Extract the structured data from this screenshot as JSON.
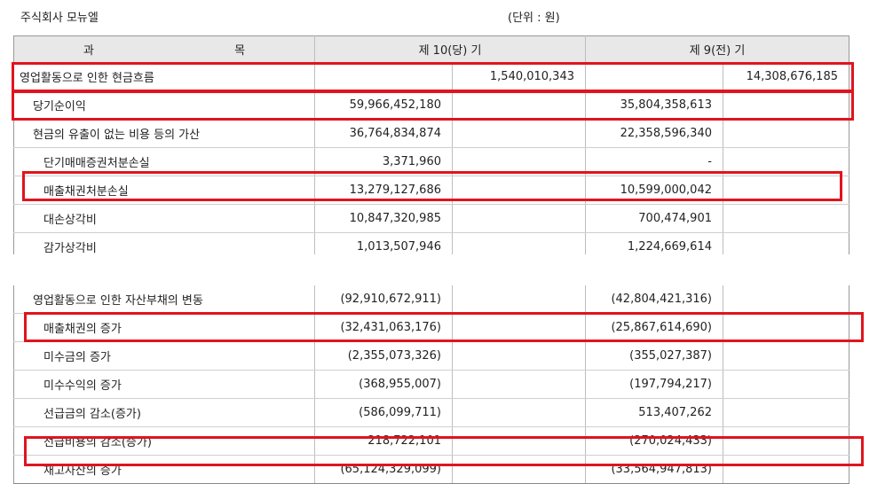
{
  "company": "주식회사 모뉴엘",
  "unit": "(단위 : 원)",
  "header": {
    "item_left": "과",
    "item_right": "목",
    "period10": "제 10(당) 기",
    "period9": "제 9(전) 기"
  },
  "top_rows": [
    {
      "label": "영업활동으로 인한 현금흐름",
      "c1": "",
      "c2": "1,540,010,343",
      "c3": "",
      "c4": "14,308,676,185"
    },
    {
      "label": "당기순이익",
      "c1": "59,966,452,180",
      "c2": "",
      "c3": "35,804,358,613",
      "c4": ""
    },
    {
      "label": "현금의 유출이 없는 비용 등의 가산",
      "c1": "36,764,834,874",
      "c2": "",
      "c3": "22,358,596,340",
      "c4": ""
    },
    {
      "label": "단기매매증권처분손실",
      "c1": "3,371,960",
      "c2": "",
      "c3": "-",
      "c4": ""
    },
    {
      "label": "매출채권처분손실",
      "c1": "13,279,127,686",
      "c2": "",
      "c3": "10,599,000,042",
      "c4": ""
    },
    {
      "label": "대손상각비",
      "c1": "10,847,320,985",
      "c2": "",
      "c3": "700,474,901",
      "c4": ""
    },
    {
      "label": "감가상각비",
      "c1": "1,013,507,946",
      "c2": "",
      "c3": "1,224,669,614",
      "c4": ""
    }
  ],
  "bottom_rows": [
    {
      "label": "영업활동으로 인한 자산부채의 변동",
      "c1": "(92,910,672,911)",
      "c2": "",
      "c3": "(42,804,421,316)",
      "c4": ""
    },
    {
      "label": "매출채권의 증가",
      "c1": "(32,431,063,176)",
      "c2": "",
      "c3": "(25,867,614,690)",
      "c4": ""
    },
    {
      "label": "미수금의 증가",
      "c1": "(2,355,073,326)",
      "c2": "",
      "c3": "(355,027,387)",
      "c4": ""
    },
    {
      "label": "미수수익의 증가",
      "c1": "(368,955,007)",
      "c2": "",
      "c3": "(197,794,217)",
      "c4": ""
    },
    {
      "label": "선급금의 감소(증가)",
      "c1": "(586,099,711)",
      "c2": "",
      "c3": "513,407,262",
      "c4": ""
    },
    {
      "label": "선급비용의 감소(증가)",
      "c1": "218,722,101",
      "c2": "",
      "c3": "(270,024,433)",
      "c4": ""
    },
    {
      "label": "재고자산의 증가",
      "c1": "(65,124,329,099)",
      "c2": "",
      "c3": "(33,564,947,813)",
      "c4": ""
    }
  ],
  "highlight_color": "#e0141e"
}
